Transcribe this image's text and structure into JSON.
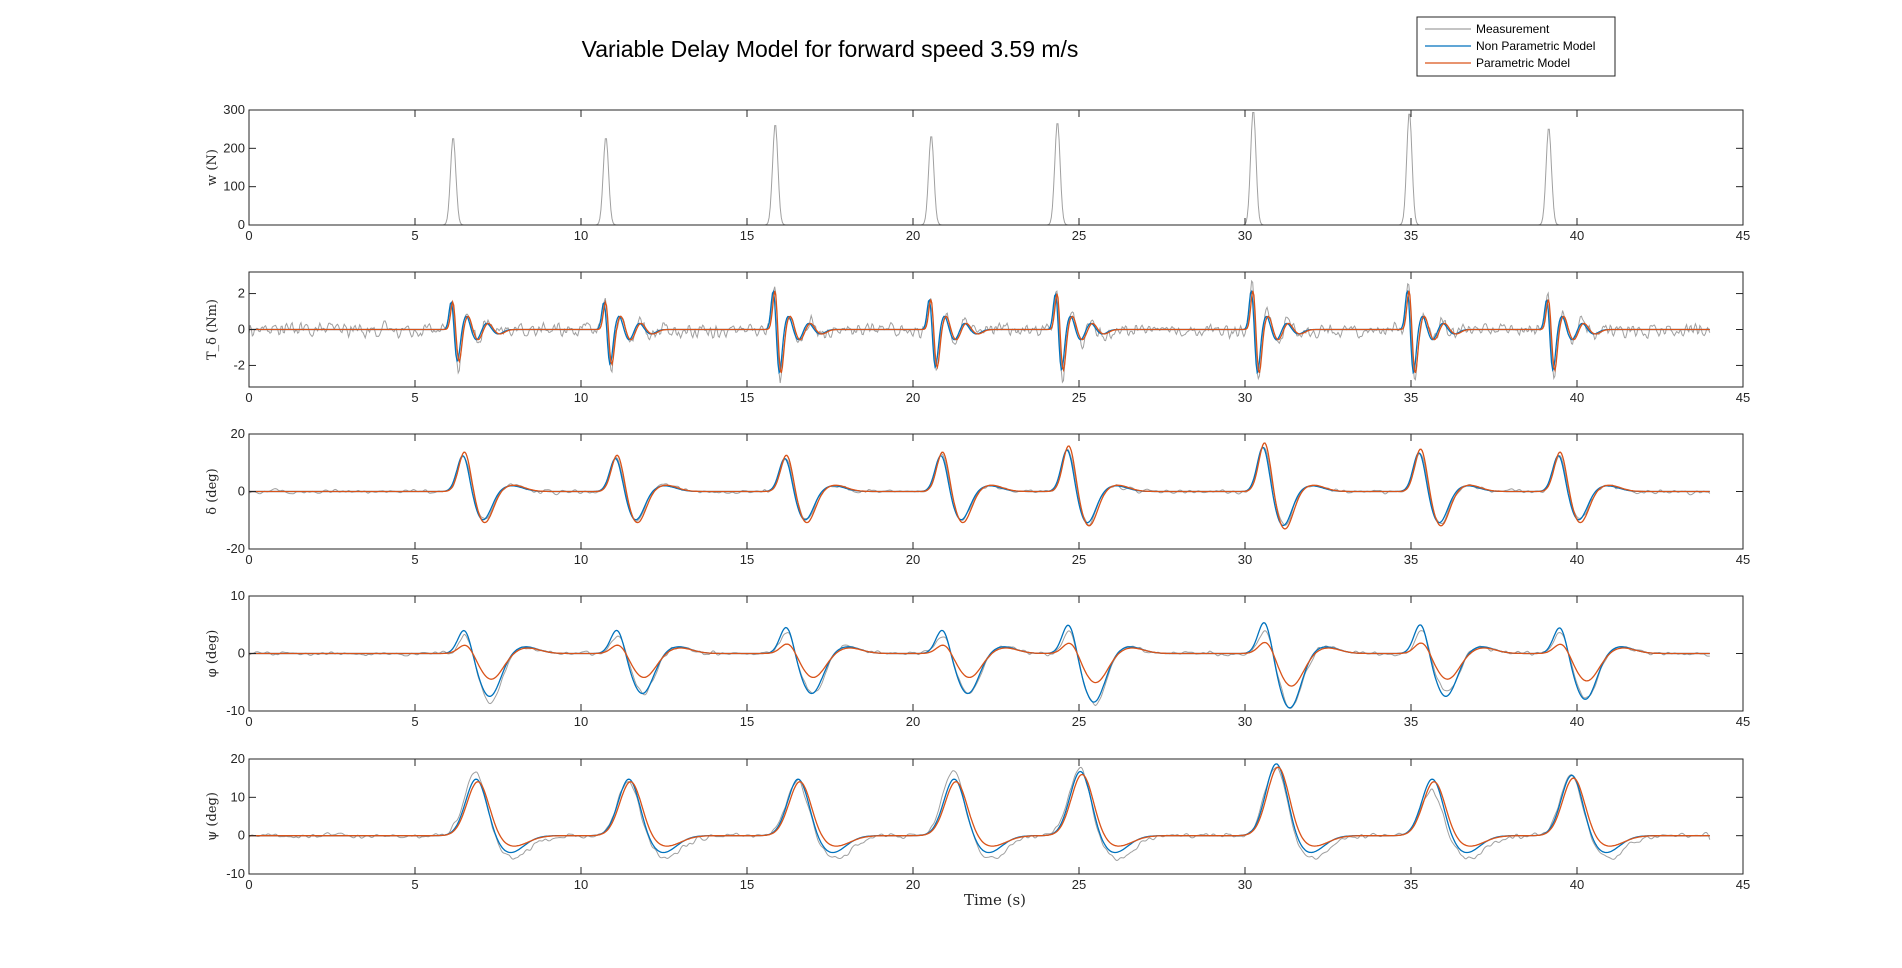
{
  "chart_data": {
    "type": "line",
    "title": "Variable Delay Model for forward speed 3.59 m/s",
    "xlabel": "Time (s)",
    "xlim": [
      0,
      45
    ],
    "xticks": [
      0,
      5,
      10,
      15,
      20,
      25,
      30,
      35,
      40,
      45
    ],
    "legend": {
      "position": "top-right",
      "entries": [
        {
          "name": "Measurement",
          "color": "#a0a0a0"
        },
        {
          "name": "Non Parametric Model",
          "color": "#0072bd"
        },
        {
          "name": "Parametric Model",
          "color": "#d95319"
        }
      ]
    },
    "events": [
      {
        "t": 6.1,
        "w": 230,
        "ts": [
          2.0,
          -2.2
        ],
        "delta": [
          13,
          -10
        ],
        "phi": [
          4.5,
          -7.5,
          -8.5
        ],
        "psi": [
          15,
          17
        ]
      },
      {
        "t": 10.7,
        "w": 230,
        "ts": [
          2.0,
          -2.4
        ],
        "delta": [
          12,
          -10
        ],
        "phi": [
          4.5,
          -7.0,
          -7.0
        ],
        "psi": [
          15,
          15
        ]
      },
      {
        "t": 15.8,
        "w": 265,
        "ts": [
          2.8,
          -3.0
        ],
        "delta": [
          12,
          -10
        ],
        "phi": [
          5.0,
          -7.0,
          -7.0
        ],
        "psi": [
          15,
          15
        ]
      },
      {
        "t": 20.5,
        "w": 235,
        "ts": [
          2.2,
          -2.6
        ],
        "delta": [
          13,
          -10
        ],
        "phi": [
          4.5,
          -7.0,
          -7.0
        ],
        "psi": [
          15,
          17
        ]
      },
      {
        "t": 24.3,
        "w": 270,
        "ts": [
          2.6,
          -2.8
        ],
        "delta": [
          15,
          -11
        ],
        "phi": [
          5.5,
          -8.5,
          -9.0
        ],
        "psi": [
          17,
          18
        ]
      },
      {
        "t": 30.2,
        "w": 300,
        "ts": [
          2.8,
          -3.0
        ],
        "delta": [
          16,
          -12
        ],
        "phi": [
          6.0,
          -9.5,
          -9.5
        ],
        "psi": [
          19,
          19
        ]
      },
      {
        "t": 34.9,
        "w": 295,
        "ts": [
          2.8,
          -3.0
        ],
        "delta": [
          14,
          -11
        ],
        "phi": [
          5.5,
          -7.5,
          -6.5
        ],
        "psi": [
          15,
          12
        ]
      },
      {
        "t": 39.1,
        "w": 255,
        "ts": [
          2.2,
          -2.8
        ],
        "delta": [
          13,
          -10
        ],
        "phi": [
          5.0,
          -8.0,
          -8.0
        ],
        "psi": [
          16,
          16
        ]
      }
    ],
    "t_end": 44,
    "panels": [
      {
        "key": "w",
        "ylabel": "w (N)",
        "ylim": [
          0,
          300
        ],
        "yticks": [
          0,
          100,
          200,
          300
        ]
      },
      {
        "key": "ts",
        "ylabel": "T_δ (Nm)",
        "ylim": [
          -3.2,
          3.2
        ],
        "yticks": [
          -2,
          0,
          2
        ]
      },
      {
        "key": "delta",
        "ylabel": "δ (deg)",
        "ylim": [
          -20,
          20
        ],
        "yticks": [
          -20,
          0,
          20
        ]
      },
      {
        "key": "phi",
        "ylabel": "φ (deg)",
        "ylim": [
          -10,
          10
        ],
        "yticks": [
          -10,
          0,
          10
        ]
      },
      {
        "key": "psi",
        "ylabel": "ψ (deg)",
        "ylim": [
          -10,
          20
        ],
        "yticks": [
          -10,
          0,
          10,
          20
        ]
      }
    ]
  }
}
